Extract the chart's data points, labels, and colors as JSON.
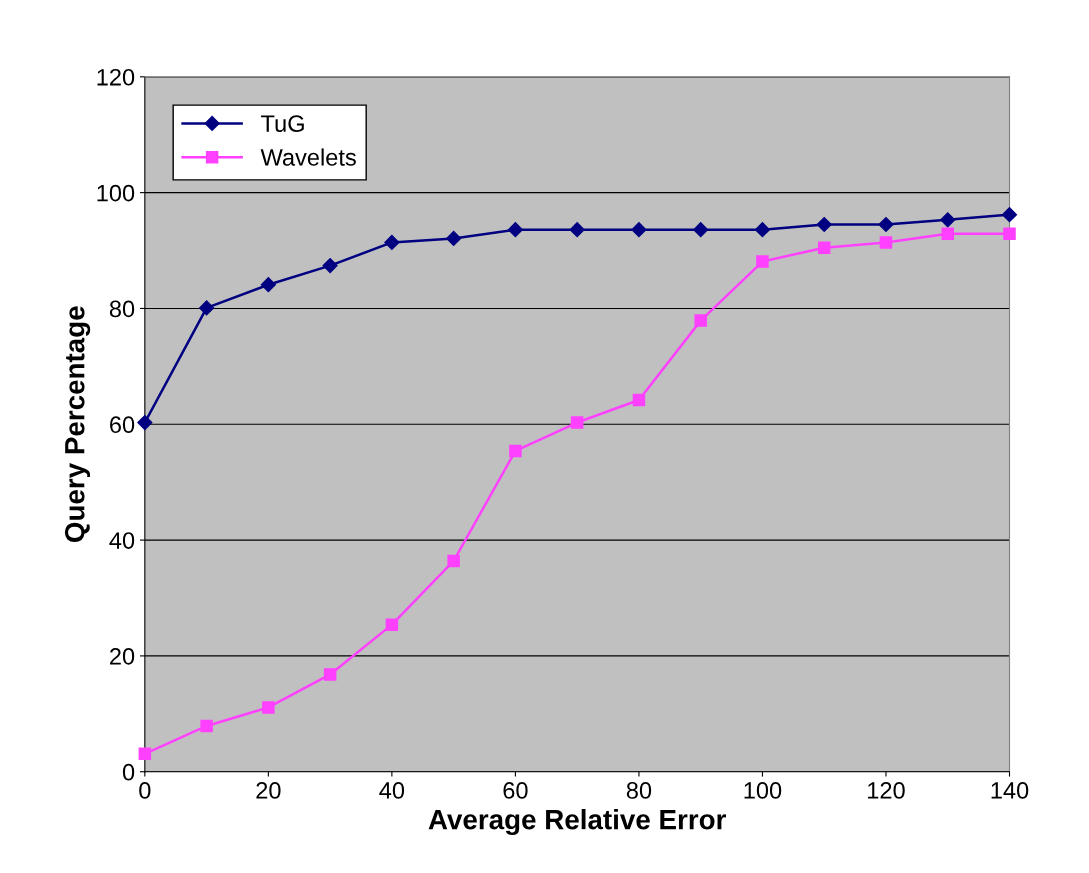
{
  "chart_data": {
    "type": "line",
    "xlabel": "Average Relative Error",
    "ylabel": "Query Percentage",
    "x": [
      0,
      10,
      20,
      30,
      40,
      50,
      60,
      70,
      80,
      90,
      100,
      110,
      120,
      130,
      140
    ],
    "series": [
      {
        "name": "TuG",
        "color": "#000080",
        "marker": "diamond",
        "values": [
          60.3,
          80.1,
          84.1,
          87.4,
          91.4,
          92.1,
          93.6,
          93.6,
          93.6,
          93.6,
          93.6,
          94.5,
          94.5,
          95.3,
          96.2
        ]
      },
      {
        "name": "Wavelets",
        "color": "#ff40ff",
        "marker": "square",
        "values": [
          3.1,
          7.9,
          11.1,
          16.8,
          25.4,
          36.4,
          55.4,
          60.3,
          64.2,
          77.9,
          88.1,
          90.5,
          91.4,
          92.9,
          92.9
        ]
      }
    ],
    "xlim": [
      0,
      140
    ],
    "xticks": [
      0,
      20,
      40,
      60,
      80,
      100,
      120,
      140
    ],
    "ylim": [
      0,
      120
    ],
    "yticks": [
      0,
      20,
      40,
      60,
      80,
      100,
      120
    ],
    "grid": "y",
    "legend": "top left"
  }
}
